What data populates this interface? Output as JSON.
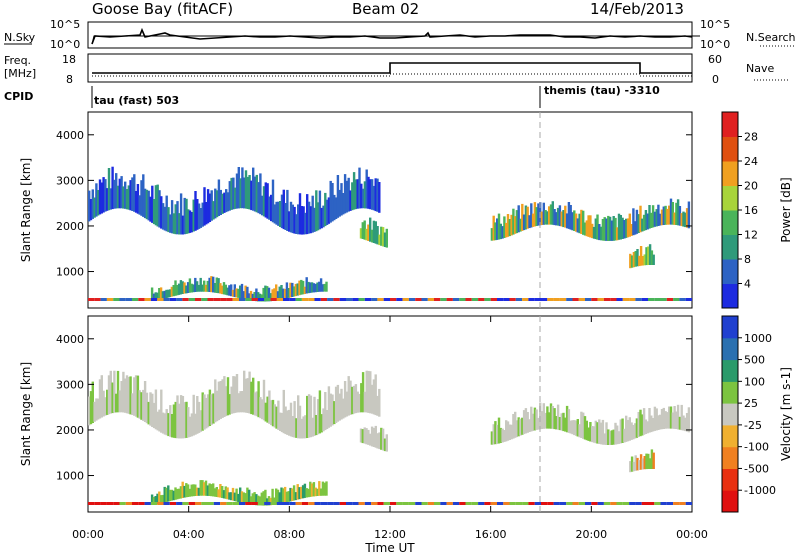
{
  "header": {
    "station": "Goose Bay (fitACF)",
    "beam": "Beam 02",
    "date": "14/Feb/2013"
  },
  "summary_panels": {
    "nsky_label": "N.Sky",
    "nsky_ticks": [
      "10^5",
      "10^0"
    ],
    "nsearch_label": "N.Search",
    "nsearch_ticks": [
      "10^5",
      "10^0"
    ],
    "freq_label_line1": "Freq.",
    "freq_label_line2": "[MHz]",
    "freq_ticks": [
      "18",
      "8"
    ],
    "nave_label": "Nave",
    "nave_ticks": [
      "60",
      "0"
    ],
    "cpid_label": "CPID",
    "cpid_mode1": "tau (fast) 503",
    "cpid_mode2": "themis (tau) -3310"
  },
  "chart_data": [
    {
      "type": "heatmap",
      "name": "Power",
      "ylabel": "Slant Range [km]",
      "xlabel": "",
      "y_ticks": [
        "1000",
        "2000",
        "3000",
        "4000"
      ],
      "ylim": [
        200,
        4500
      ],
      "colorbar_label": "Power [dB]",
      "colorbar_ticks": [
        "4",
        "8",
        "12",
        "16",
        "20",
        "24",
        "28"
      ],
      "colorbar_colors": [
        "#1d2be0",
        "#2d63c4",
        "#2f9a7a",
        "#4ab45a",
        "#a8d43a",
        "#f0a020",
        "#e05010",
        "#e02020"
      ],
      "echo_regions": [
        {
          "t_start": 0.0,
          "t_end": 11.6,
          "r_low": 1700,
          "r_high": 3300,
          "level": "weak"
        },
        {
          "t_start": 10.8,
          "t_end": 11.9,
          "r_low": 1400,
          "r_high": 2300,
          "level": "strong"
        },
        {
          "t_start": 2.5,
          "t_end": 9.5,
          "r_low": 300,
          "r_high": 900,
          "level": "medium"
        },
        {
          "t_start": 16.0,
          "t_end": 23.9,
          "r_low": 1600,
          "r_high": 2600,
          "level": "medium"
        },
        {
          "t_start": 21.5,
          "t_end": 22.5,
          "r_low": 800,
          "r_high": 1600,
          "level": "strong"
        }
      ]
    },
    {
      "type": "heatmap",
      "name": "Velocity",
      "ylabel": "Slant Range [km]",
      "xlabel": "Time UT",
      "x_ticks": [
        "00:00",
        "04:00",
        "08:00",
        "12:00",
        "16:00",
        "20:00",
        "00:00"
      ],
      "y_ticks": [
        "1000",
        "2000",
        "3000",
        "4000"
      ],
      "ylim": [
        200,
        4500
      ],
      "colorbar_label": "Velocity [m s-1]",
      "colorbar_ticks": [
        "1000",
        "500",
        "100",
        "25",
        "-25",
        "-100",
        "-500",
        "-1000"
      ],
      "colorbar_colors": [
        "#2040d0",
        "#2a70b0",
        "#2a9a6a",
        "#7cc440",
        "#c8c8c0",
        "#f0b030",
        "#f08020",
        "#e83010",
        "#e01010"
      ],
      "echo_regions": [
        {
          "t_start": 0.0,
          "t_end": 11.6,
          "r_low": 1700,
          "r_high": 3300,
          "level": "ground"
        },
        {
          "t_start": 10.8,
          "t_end": 11.9,
          "r_low": 1400,
          "r_high": 2300,
          "level": "ground"
        },
        {
          "t_start": 2.5,
          "t_end": 9.5,
          "r_low": 300,
          "r_high": 900,
          "level": "positive"
        },
        {
          "t_start": 16.0,
          "t_end": 23.9,
          "r_low": 1600,
          "r_high": 2600,
          "level": "ground"
        },
        {
          "t_start": 21.5,
          "t_end": 22.5,
          "r_low": 800,
          "r_high": 1600,
          "level": "mixed"
        }
      ]
    }
  ]
}
